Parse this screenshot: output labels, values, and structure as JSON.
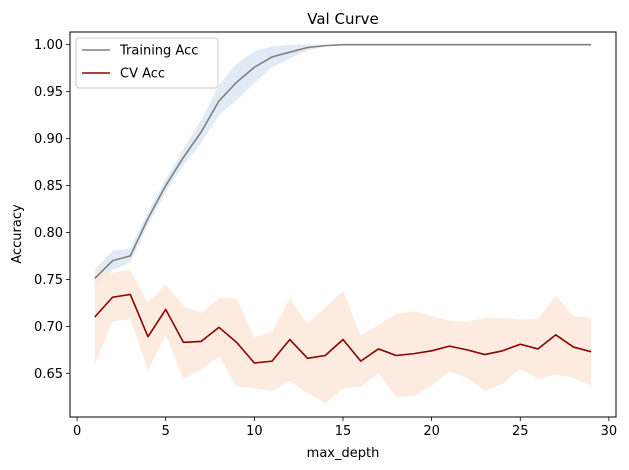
{
  "chart_data": {
    "type": "line",
    "title": "Val Curve",
    "xlabel": "max_depth",
    "ylabel": "Accuracy",
    "xlim": [
      -0.4,
      30.4
    ],
    "ylim": [
      0.6035,
      1.0135
    ],
    "xticks": [
      0,
      5,
      10,
      15,
      20,
      25,
      30
    ],
    "yticks": [
      0.65,
      0.7,
      0.75,
      0.8,
      0.85,
      0.9,
      0.95,
      1.0
    ],
    "ytick_labels": [
      "0.65",
      "0.70",
      "0.75",
      "0.80",
      "0.85",
      "0.90",
      "0.95",
      "1.00"
    ],
    "grid": false,
    "legend_placement": "upper-left",
    "x": [
      1,
      2,
      3,
      4,
      5,
      6,
      7,
      8,
      9,
      10,
      11,
      12,
      13,
      14,
      15,
      16,
      17,
      18,
      19,
      20,
      21,
      22,
      23,
      24,
      25,
      26,
      27,
      28,
      29
    ],
    "series": [
      {
        "name": "Training Acc",
        "color": "#808080",
        "band_color": "#dce8f5",
        "values": [
          0.751,
          0.77,
          0.775,
          0.815,
          0.85,
          0.88,
          0.907,
          0.94,
          0.96,
          0.976,
          0.987,
          0.992,
          0.997,
          0.999,
          1.0,
          1.0,
          1.0,
          1.0,
          1.0,
          1.0,
          1.0,
          1.0,
          1.0,
          1.0,
          1.0,
          1.0,
          1.0,
          1.0,
          1.0
        ],
        "upper": [
          0.76,
          0.781,
          0.783,
          0.822,
          0.857,
          0.889,
          0.92,
          0.957,
          0.98,
          0.993,
          0.998,
          1.0,
          1.0,
          1.0,
          1.0,
          1.0,
          1.0,
          1.0,
          1.0,
          1.0,
          1.0,
          1.0,
          1.0,
          1.0,
          1.0,
          1.0,
          1.0,
          1.0,
          1.0
        ],
        "lower": [
          0.742,
          0.76,
          0.768,
          0.808,
          0.843,
          0.871,
          0.895,
          0.925,
          0.941,
          0.959,
          0.976,
          0.985,
          0.994,
          0.998,
          1.0,
          1.0,
          1.0,
          1.0,
          1.0,
          1.0,
          1.0,
          1.0,
          1.0,
          1.0,
          1.0,
          1.0,
          1.0,
          1.0,
          1.0
        ]
      },
      {
        "name": "CV Acc",
        "color": "#8b0000",
        "band_color": "#fde8da",
        "values": [
          0.71,
          0.731,
          0.734,
          0.689,
          0.718,
          0.683,
          0.684,
          0.699,
          0.683,
          0.661,
          0.663,
          0.686,
          0.666,
          0.669,
          0.686,
          0.663,
          0.676,
          0.669,
          0.671,
          0.674,
          0.679,
          0.675,
          0.67,
          0.674,
          0.681,
          0.676,
          0.691,
          0.678,
          0.673
        ],
        "upper": [
          0.76,
          0.757,
          0.76,
          0.725,
          0.745,
          0.722,
          0.714,
          0.73,
          0.73,
          0.688,
          0.695,
          0.73,
          0.703,
          0.72,
          0.738,
          0.69,
          0.702,
          0.713,
          0.716,
          0.711,
          0.706,
          0.705,
          0.709,
          0.709,
          0.707,
          0.708,
          0.733,
          0.711,
          0.709
        ],
        "lower": [
          0.66,
          0.705,
          0.708,
          0.653,
          0.691,
          0.644,
          0.654,
          0.668,
          0.636,
          0.634,
          0.631,
          0.642,
          0.629,
          0.618,
          0.634,
          0.636,
          0.65,
          0.625,
          0.626,
          0.637,
          0.652,
          0.645,
          0.631,
          0.639,
          0.655,
          0.644,
          0.649,
          0.645,
          0.637
        ]
      }
    ]
  }
}
